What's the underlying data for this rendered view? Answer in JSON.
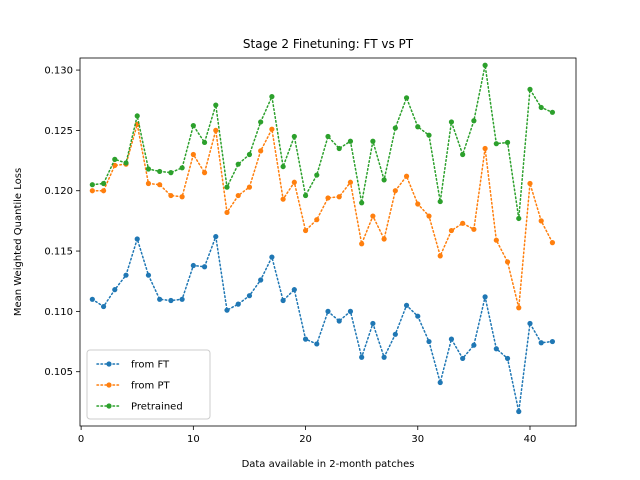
{
  "chart_data": {
    "type": "line",
    "title": "Stage 2 Finetuning: FT vs PT",
    "xlabel": "Data available in 2-month patches",
    "ylabel": "Mean Weighted Quantile Loss",
    "xlim": [
      -0.1,
      44.1
    ],
    "ylim": [
      0.1005,
      0.131
    ],
    "xticks": [
      0,
      10,
      20,
      30,
      40
    ],
    "xtick_labels": [
      "0",
      "10",
      "20",
      "30",
      "40"
    ],
    "yticks": [
      0.105,
      0.11,
      0.115,
      0.12,
      0.125,
      0.13
    ],
    "ytick_labels": [
      "0.105",
      "0.110",
      "0.115",
      "0.120",
      "0.125",
      "0.130"
    ],
    "grid": false,
    "legend_position": "lower-left",
    "x": [
      1,
      2,
      3,
      4,
      5,
      6,
      7,
      8,
      9,
      10,
      11,
      12,
      13,
      14,
      15,
      16,
      17,
      18,
      19,
      20,
      21,
      22,
      23,
      24,
      25,
      26,
      27,
      28,
      29,
      30,
      31,
      32,
      33,
      34,
      35,
      36,
      37,
      38,
      39,
      40,
      41,
      42
    ],
    "series": [
      {
        "name": "from FT",
        "color": "#1f77b4",
        "values": [
          0.111,
          0.1104,
          0.1118,
          0.113,
          0.116,
          0.113,
          0.111,
          0.1109,
          0.111,
          0.1138,
          0.1137,
          0.1162,
          0.1101,
          0.1106,
          0.1113,
          0.1126,
          0.1145,
          0.1109,
          0.1118,
          0.1077,
          0.1073,
          0.11,
          0.1092,
          0.11,
          0.1062,
          0.109,
          0.1062,
          0.1081,
          0.1105,
          0.1096,
          0.1075,
          0.1041,
          0.1077,
          0.1061,
          0.1072,
          0.1112,
          0.1069,
          0.1061,
          0.1017,
          0.109,
          0.1074,
          0.1075
        ]
      },
      {
        "name": "from PT",
        "color": "#ff7f0e",
        "values": [
          0.12,
          0.12,
          0.1221,
          0.1222,
          0.1255,
          0.1206,
          0.1205,
          0.1196,
          0.1195,
          0.123,
          0.1215,
          0.125,
          0.1182,
          0.1196,
          0.1203,
          0.1233,
          0.1251,
          0.1193,
          0.1207,
          0.1167,
          0.1176,
          0.1194,
          0.1195,
          0.1207,
          0.1156,
          0.1179,
          0.116,
          0.12,
          0.1212,
          0.1189,
          0.1179,
          0.1146,
          0.1167,
          0.1173,
          0.1168,
          0.1235,
          0.1159,
          0.1141,
          0.1103,
          0.1206,
          0.1175,
          0.1157
        ]
      },
      {
        "name": "Pretrained",
        "color": "#2ca02c",
        "values": [
          0.1205,
          0.1206,
          0.1226,
          0.1223,
          0.1262,
          0.1218,
          0.1216,
          0.1215,
          0.1219,
          0.1254,
          0.124,
          0.1271,
          0.1203,
          0.1222,
          0.123,
          0.1257,
          0.1278,
          0.122,
          0.1245,
          0.1196,
          0.1213,
          0.1245,
          0.1235,
          0.1241,
          0.119,
          0.1241,
          0.1209,
          0.1252,
          0.1277,
          0.1253,
          0.1246,
          0.1191,
          0.1257,
          0.123,
          0.1258,
          0.1304,
          0.1239,
          0.124,
          0.1177,
          0.1284,
          0.1269,
          0.1265
        ]
      }
    ]
  }
}
